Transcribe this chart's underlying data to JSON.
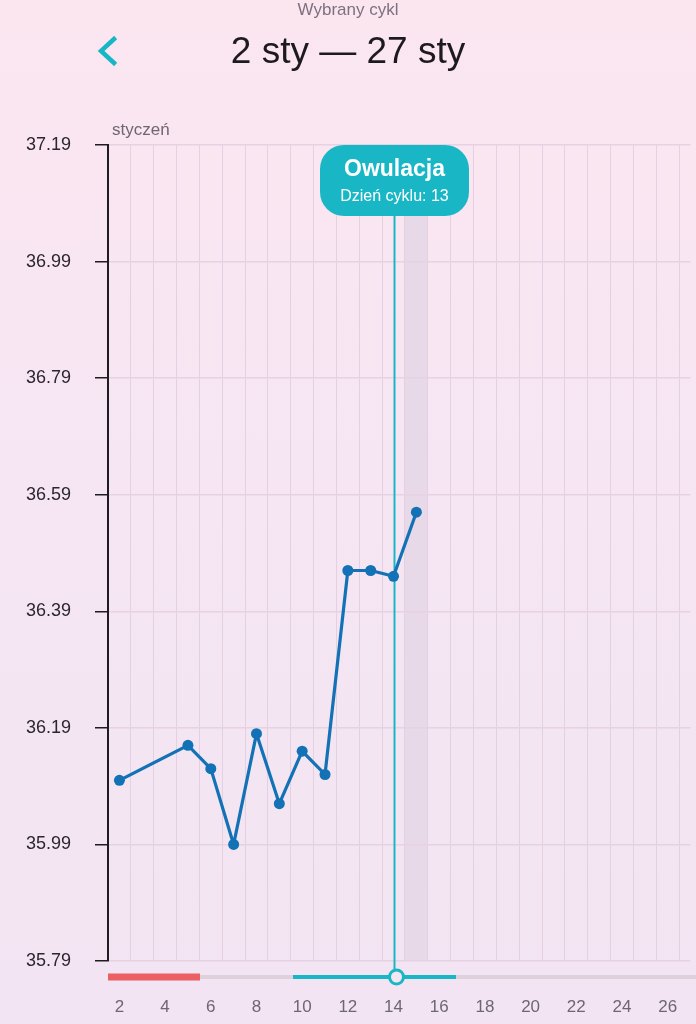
{
  "chart_data": {
    "type": "line",
    "subtitle": "Wybrany cykl",
    "title": "2 sty — 27 sty",
    "xlabel": "styczeń",
    "x": [
      2,
      5,
      6,
      7,
      8,
      9,
      10,
      11,
      12,
      13,
      14,
      15
    ],
    "values": [
      36.1,
      36.16,
      36.12,
      35.99,
      36.18,
      36.06,
      36.15,
      36.11,
      36.46,
      36.46,
      36.45,
      36.56
    ],
    "color": "#1272b5",
    "xlim": [
      1.5,
      27
    ],
    "xticks": [
      {
        "value": 1.5,
        "label": null
      },
      2,
      {
        "value": 2.5,
        "label": null
      },
      {
        "value": 3.5,
        "label": null
      },
      4,
      {
        "value": 4.5,
        "label": null
      },
      {
        "value": 5.5,
        "label": null
      },
      6,
      {
        "value": 6.5,
        "label": null
      },
      {
        "value": 7.5,
        "label": null
      },
      8,
      {
        "value": 8.5,
        "label": null
      },
      {
        "value": 9.5,
        "label": null
      },
      10,
      {
        "value": 10.5,
        "label": null
      },
      {
        "value": 11.5,
        "label": null
      },
      12,
      {
        "value": 12.5,
        "label": null
      },
      {
        "value": 13.5,
        "label": null
      },
      14,
      {
        "value": 14.5,
        "label": null
      },
      {
        "value": 15.5,
        "label": null
      },
      16,
      {
        "value": 16.5,
        "label": null
      },
      {
        "value": 17.5,
        "label": null
      },
      18,
      {
        "value": 18.5,
        "label": null
      },
      {
        "value": 19.5,
        "label": null
      },
      20,
      {
        "value": 20.5,
        "label": null
      },
      {
        "value": 21.5,
        "label": null
      },
      22,
      {
        "value": 22.5,
        "label": null
      },
      {
        "value": 23.5,
        "label": null
      },
      24,
      {
        "value": 24.5,
        "label": null
      },
      {
        "value": 25.5,
        "label": null
      },
      26,
      {
        "value": 26.5,
        "label": null
      }
    ],
    "ylim": [
      35.79,
      37.19
    ],
    "yticks": [
      35.79,
      35.99,
      36.19,
      36.39,
      36.59,
      36.79,
      36.99,
      37.19
    ],
    "grid": true,
    "marker": "circle",
    "line_style": "solid",
    "ref_lines": [
      {
        "axis": "x",
        "value": 14,
        "label": "Owulacja",
        "color": "#19b7c6"
      }
    ],
    "bands": [
      {
        "axis": "x",
        "from": 14.5,
        "to": 15.5,
        "color": "#e8d9e8"
      }
    ],
    "annotations": [
      "Dzień cyklu: 13"
    ]
  }
}
